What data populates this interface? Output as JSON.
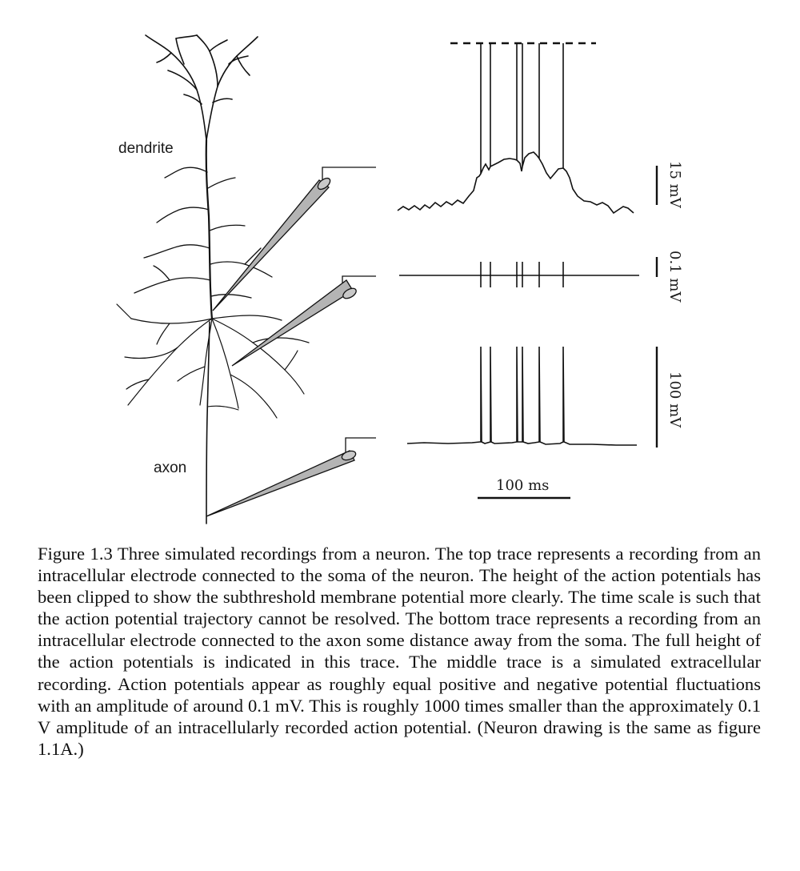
{
  "figure": {
    "labels": {
      "dendrite": "dendrite",
      "axon": "axon"
    },
    "scale_bars": {
      "top_trace": "15 mV",
      "middle_trace": "0.1 mV",
      "bottom_trace": "100 mV",
      "time": "100 ms"
    },
    "spike_count": 6,
    "line_color": "#111111",
    "electrode_fill": "#b4b4b4"
  },
  "caption": "Figure 1.3 Three simulated recordings from a neuron. The top trace represents a recording from an intracellular electrode connected to the soma of the neuron. The height of the action potentials has been clipped to show the subthreshold membrane potential more clearly. The time scale is such that the action potential trajectory cannot be resolved. The bottom trace represents a recording from an intracellular electrode connected to the axon some distance away from the soma. The full height of the action potentials is indicated in this trace. The middle trace is a simulated extracellular recording. Action potentials appear as roughly equal positive and negative potential fluctuations with an amplitude of around 0.1 mV. This is roughly 1000 times smaller than the approximately 0.1 V amplitude of an intracellularly recorded action potential. (Neuron drawing is the same as figure 1.1A.)"
}
